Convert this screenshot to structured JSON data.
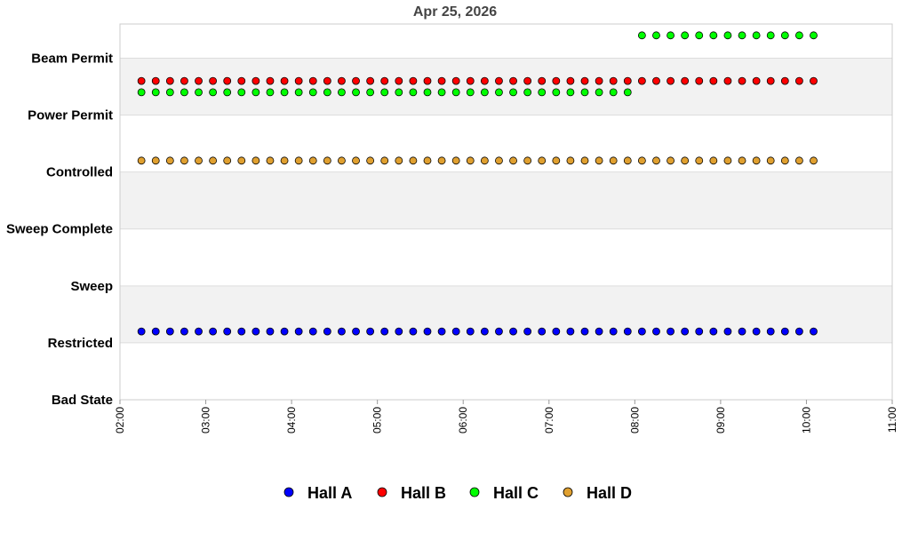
{
  "chart_data": {
    "type": "scatter",
    "title": "Apr 25, 2026",
    "xlabel": "",
    "ylabel": "",
    "x_ticks": [
      "02:00",
      "03:00",
      "04:00",
      "05:00",
      "06:00",
      "07:00",
      "08:00",
      "09:00",
      "10:00",
      "11:00"
    ],
    "xlim": [
      "02:00",
      "11:00"
    ],
    "y_categories": [
      "Bad State",
      "Restricted",
      "Sweep",
      "Sweep Complete",
      "Controlled",
      "Power Permit",
      "Beam Permit"
    ],
    "grid": true,
    "legend_position": "bottom",
    "sample_interval_minutes": 10,
    "series": [
      {
        "name": "Hall A",
        "color": "#0000ff",
        "segments": [
          {
            "start": "02:15",
            "end": "10:05",
            "value": 1.2
          }
        ]
      },
      {
        "name": "Hall B",
        "color": "#ff0000",
        "segments": [
          {
            "start": "02:15",
            "end": "10:05",
            "value": 5.6
          }
        ]
      },
      {
        "name": "Hall C",
        "color": "#00ff00",
        "segments": [
          {
            "start": "02:15",
            "end": "07:55",
            "value": 5.4
          },
          {
            "start": "08:05",
            "end": "10:05",
            "value": 6.4
          }
        ]
      },
      {
        "name": "Hall D",
        "color": "#e0a030",
        "segments": [
          {
            "start": "02:15",
            "end": "10:05",
            "value": 4.2
          }
        ]
      }
    ]
  }
}
